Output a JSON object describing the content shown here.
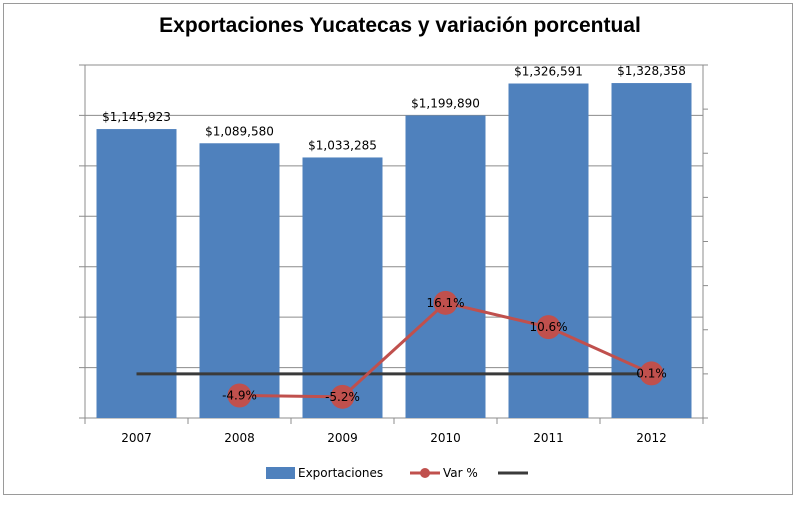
{
  "chart_data": {
    "type": "bar",
    "title": "Exportaciones  Yucatecas y variación porcentual",
    "categories": [
      "2007",
      "2008",
      "2009",
      "2010",
      "2011",
      "2012"
    ],
    "series": [
      {
        "name": "Exportaciones",
        "type": "bar",
        "axis": "primary",
        "color": "#4f81bd",
        "values": [
          1145923,
          1089580,
          1033285,
          1199890,
          1326591,
          1328358
        ],
        "labels": [
          "$1,145,923",
          "$1,089,580",
          "$1,033,285",
          "$1,199,890",
          "$1,326,591",
          "$1,328,358"
        ]
      },
      {
        "name": "Var %",
        "type": "line",
        "axis": "secondary",
        "color": "#c0504d",
        "values": [
          null,
          -4.9,
          -5.2,
          16.1,
          10.6,
          0.1
        ],
        "labels": [
          "",
          "-4.9%",
          "-5.2%",
          "16.1%",
          "10.6%",
          "0.1%"
        ]
      },
      {
        "name": "",
        "type": "line",
        "axis": "secondary",
        "color": "#3a3a3a",
        "values": [
          0,
          0,
          0,
          0,
          0,
          0
        ]
      }
    ],
    "ylim": [
      0,
      1400000
    ],
    "y2lim": [
      -10,
      70
    ],
    "grid": true,
    "y_tick_labels_shown": false,
    "legend": "bottom"
  }
}
